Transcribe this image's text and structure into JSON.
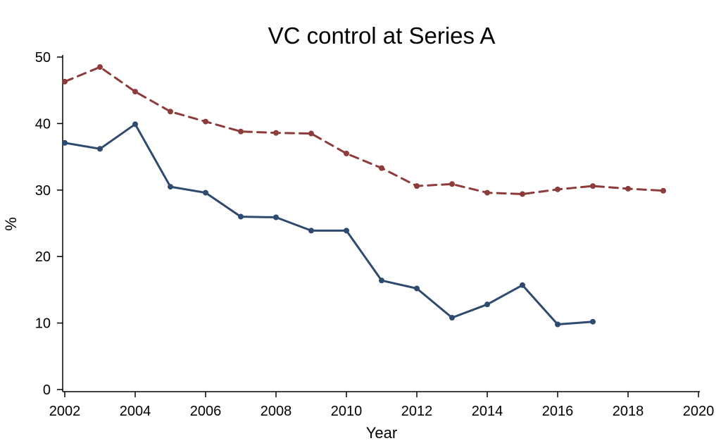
{
  "chart_data": {
    "type": "line",
    "title": "VC control at Series A",
    "xlabel": "Year",
    "ylabel": "%",
    "xlim": [
      2002,
      2020
    ],
    "ylim": [
      0,
      50
    ],
    "xticks": [
      2002,
      2004,
      2006,
      2008,
      2010,
      2012,
      2014,
      2016,
      2018,
      2020
    ],
    "yticks": [
      0,
      10,
      20,
      30,
      40,
      50
    ],
    "grid": false,
    "series": [
      {
        "color": "#2e4a6e",
        "line_style": "solid",
        "x": [
          2002,
          2003,
          2004,
          2005,
          2006,
          2007,
          2008,
          2009,
          2010,
          2011,
          2012,
          2013,
          2014,
          2015,
          2016,
          2017
        ],
        "y": [
          37.1,
          36.2,
          39.9,
          30.5,
          29.6,
          26.0,
          25.9,
          23.9,
          23.9,
          16.4,
          15.2,
          10.8,
          12.8,
          15.7,
          9.8,
          10.2
        ]
      },
      {
        "color": "#8e3b3b",
        "line_style": "dashed",
        "x": [
          2002,
          2003,
          2004,
          2005,
          2006,
          2007,
          2008,
          2009,
          2010,
          2011,
          2012,
          2013,
          2014,
          2015,
          2016,
          2017,
          2018,
          2019
        ],
        "y": [
          46.3,
          48.5,
          44.8,
          41.8,
          40.3,
          38.8,
          38.6,
          38.5,
          35.5,
          33.3,
          30.6,
          30.9,
          29.6,
          29.4,
          30.1,
          30.6,
          30.2,
          29.9
        ]
      }
    ]
  }
}
